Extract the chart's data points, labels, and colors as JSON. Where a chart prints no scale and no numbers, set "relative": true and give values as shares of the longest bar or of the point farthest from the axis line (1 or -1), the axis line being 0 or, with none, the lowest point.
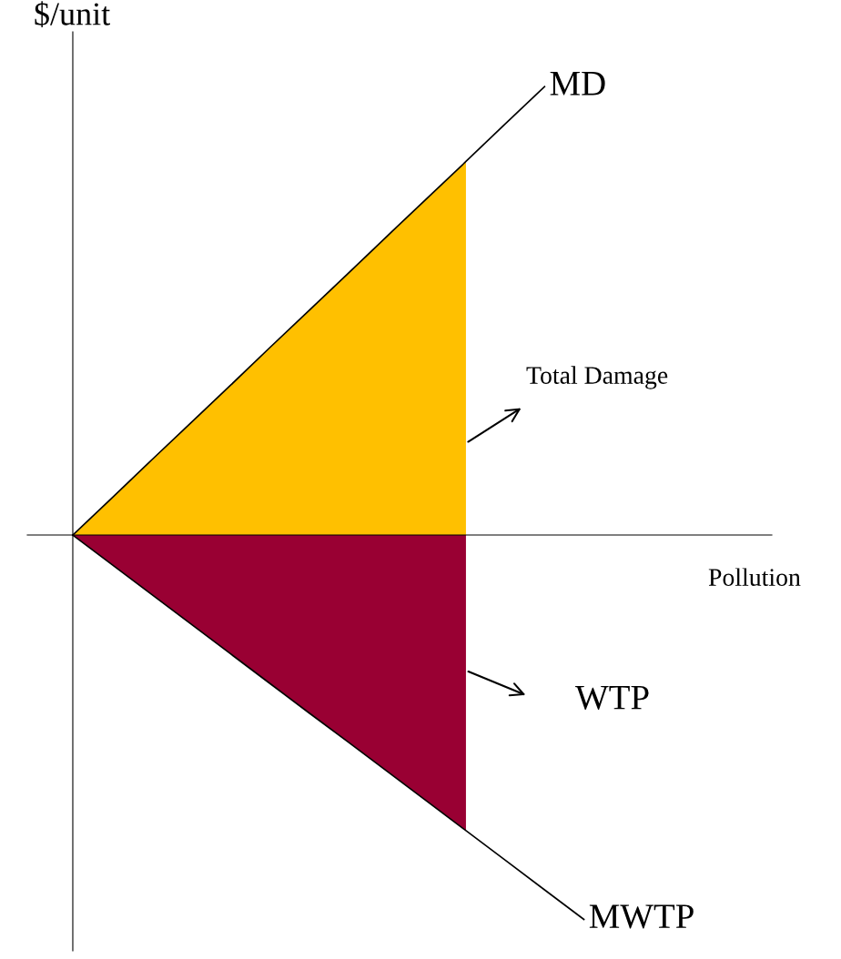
{
  "chart_data": {
    "type": "line",
    "relative": true,
    "ylabel": "$/unit",
    "categories": [
      null,
      null,
      null,
      null,
      null,
      null,
      null,
      null,
      null,
      null,
      null,
      null,
      null,
      null
    ],
    "series": [
      {
        "type": "area",
        "color": "#ffc000",
        "values": [
          0,
          0.083,
          0.167,
          0.25,
          0.333,
          0.417,
          0.5,
          0.583,
          0.667,
          0.75,
          0.833,
          null,
          null,
          null
        ]
      },
      {
        "type": "area",
        "color": "#990033",
        "values": [
          0,
          -0.066,
          -0.132,
          -0.198,
          -0.264,
          -0.33,
          -0.396,
          -0.461,
          -0.527,
          -0.593,
          -0.659,
          null,
          null,
          null
        ]
      },
      {
        "name": "MD",
        "color": "#000000",
        "values": [
          0,
          0.083,
          0.167,
          0.25,
          0.333,
          0.417,
          0.5,
          0.583,
          0.667,
          0.75,
          0.833,
          0.917,
          1,
          null
        ]
      },
      {
        "name": "MWTP",
        "color": "#000000",
        "values": [
          0,
          -0.066,
          -0.132,
          -0.198,
          -0.264,
          -0.33,
          -0.396,
          -0.461,
          -0.527,
          -0.593,
          -0.659,
          -0.725,
          -0.791,
          -0.857
        ]
      }
    ],
    "annotations": [
      "Total Damage",
      "WTP",
      "Pollution"
    ],
    "legend": false,
    "marker": "none",
    "line_style": "solid"
  }
}
